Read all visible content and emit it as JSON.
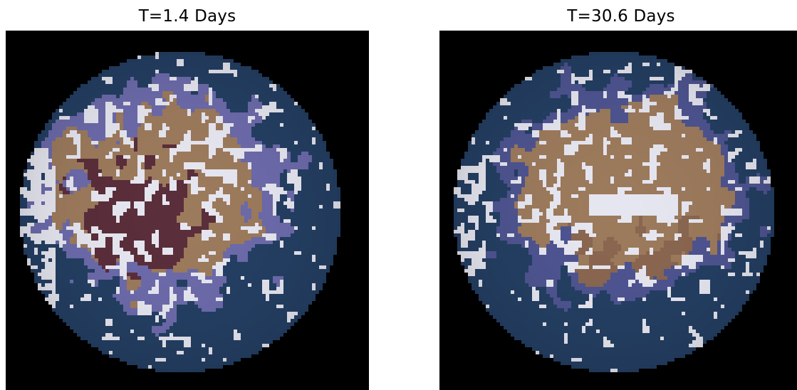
{
  "panels": [
    {
      "title": "T=1.4 Days",
      "image": "planet-surface-snapshot",
      "palette": {
        "background": "#000000",
        "ocean": "#243F63",
        "ice": "#E6E6F0",
        "land_tan": "#9C7A5C",
        "land_dark": "#5A2E3A",
        "sea_ice_purple": "#6C6AAA"
      }
    },
    {
      "title": "T=30.6 Days",
      "image": "planet-surface-snapshot",
      "palette": {
        "background": "#000000",
        "ocean": "#243F63",
        "ice": "#E6E6F0",
        "land_tan": "#9C7A5C",
        "land_dark": "#8A6650",
        "sea_ice_purple": "#4E5490"
      }
    }
  ]
}
